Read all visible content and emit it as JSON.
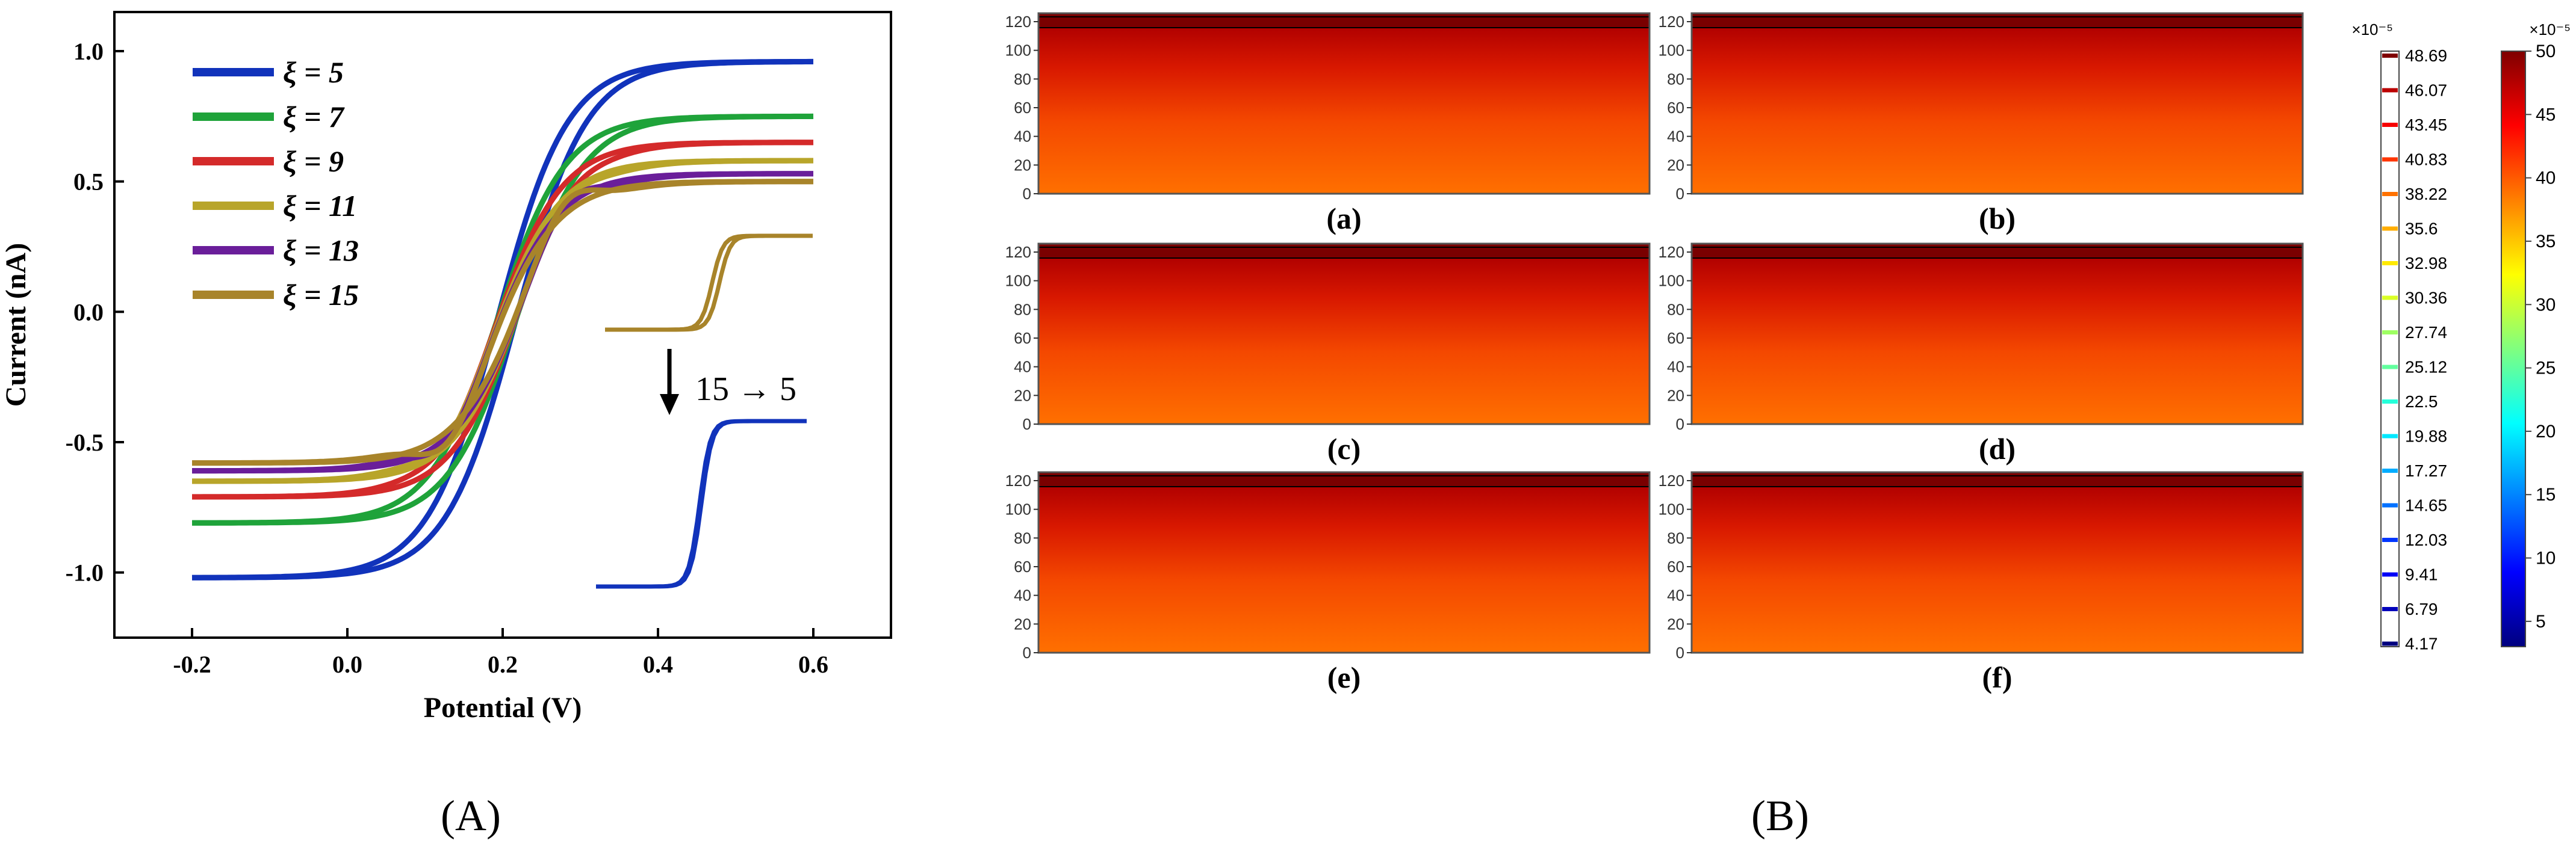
{
  "panel_labels": {
    "A": "(A)",
    "B": "(B)"
  },
  "colors": {
    "xi5": "#1133bb",
    "xi7": "#1fa33a",
    "xi9": "#d42a2a",
    "xi11": "#b8a52a",
    "xi13": "#6a1e9a",
    "xi15": "#a8842a"
  },
  "chart_data": [
    {
      "type": "line",
      "panel": "(A)",
      "xlabel": "Potential (V)",
      "ylabel": "Current (nA)",
      "xlim": [
        -0.3,
        0.7
      ],
      "ylim": [
        -1.25,
        1.15
      ],
      "xticks": [
        "-0.2",
        "0.0",
        "0.2",
        "0.4",
        "0.6"
      ],
      "yticks": [
        "-1.0",
        "-0.5",
        "0.0",
        "0.5",
        "1.0"
      ],
      "legend_position": "top-left",
      "annotation": "15 → 5",
      "series": [
        {
          "name": "ξ = 5",
          "color_key": "xi5",
          "lower": -1.02,
          "upper": 0.96,
          "e_half": 0.205,
          "width": 0.045,
          "hyst": 0.012,
          "peak": 0.0
        },
        {
          "name": "ξ = 7",
          "color_key": "xi7",
          "lower": -0.81,
          "upper": 0.75,
          "e_half": 0.205,
          "width": 0.044,
          "hyst": 0.012,
          "peak": 0.0
        },
        {
          "name": "ξ = 9",
          "color_key": "xi9",
          "lower": -0.71,
          "upper": 0.65,
          "e_half": 0.205,
          "width": 0.043,
          "hyst": 0.012,
          "peak": 0.03
        },
        {
          "name": "ξ = 11",
          "color_key": "xi11",
          "lower": -0.65,
          "upper": 0.58,
          "e_half": 0.205,
          "width": 0.043,
          "hyst": 0.012,
          "peak": 0.06
        },
        {
          "name": "ξ = 13",
          "color_key": "xi13",
          "lower": -0.61,
          "upper": 0.53,
          "e_half": 0.205,
          "width": 0.043,
          "hyst": 0.012,
          "peak": 0.09
        },
        {
          "name": "ξ = 15",
          "color_key": "xi15",
          "lower": -0.58,
          "upper": 0.5,
          "e_half": 0.205,
          "width": 0.043,
          "hyst": 0.012,
          "peak": 0.12
        }
      ]
    },
    {
      "type": "heatmap",
      "panel": "(B)",
      "sub_panels": [
        {
          "label": "(a)",
          "wells": 2,
          "period": 3,
          "offset": 0.5,
          "radius": 3.2
        },
        {
          "label": "(b)",
          "wells": 3,
          "period": 3,
          "offset": 0.5,
          "radius": 3.2
        },
        {
          "label": "(c)",
          "wells": 4,
          "period": 3,
          "offset": 0.5,
          "radius": 3.0
        },
        {
          "label": "(d)",
          "wells": 5,
          "period": 3,
          "offset": 0.5,
          "radius": 3.0
        },
        {
          "label": "(e)",
          "wells": 6,
          "period": 2,
          "offset": 0.5,
          "radius": 2.8
        },
        {
          "label": "(f)",
          "wells": 8,
          "period": 2,
          "offset": 0.5,
          "radius": 2.4
        }
      ],
      "yticks": [
        "0",
        "20",
        "40",
        "60",
        "80",
        "100",
        "120"
      ],
      "ylim": [
        0,
        120
      ],
      "colorbar_contour": {
        "exponent": "×10⁻⁵",
        "levels": [
          "48.69",
          "46.07",
          "43.45",
          "40.83",
          "38.22",
          "35.6",
          "32.98",
          "30.36",
          "27.74",
          "25.12",
          "22.5",
          "19.88",
          "17.27",
          "14.65",
          "12.03",
          "9.41",
          "6.79",
          "4.17"
        ]
      },
      "colorbar_continuous": {
        "exponent": "×10⁻⁵",
        "ticks": [
          "50",
          "45",
          "40",
          "35",
          "30",
          "25",
          "20",
          "15",
          "10",
          "5"
        ],
        "range": [
          3,
          50
        ]
      }
    }
  ]
}
